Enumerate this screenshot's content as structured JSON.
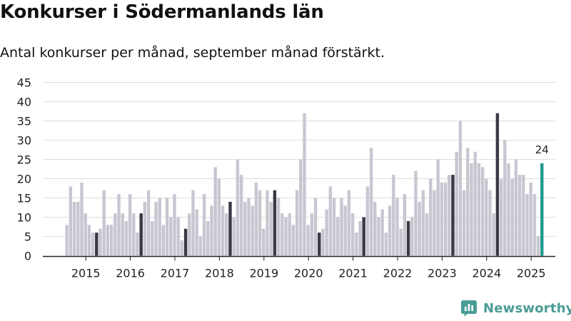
{
  "title": "Konkurser i Södermanlands län",
  "subtitle": "Antal konkurser per månad, september månad förstärkt.",
  "brand": {
    "name": "Newsworthy",
    "color": "#4a9c96",
    "icon": "newsworthy-logo-icon"
  },
  "colors": {
    "regular": "#c8c7d1",
    "september": "#3a3946",
    "latest": "#1f9a8f",
    "grid": "#dedede",
    "axis": "#222222"
  },
  "chart_data": {
    "type": "bar",
    "title": "Konkurser i Södermanlands län",
    "subtitle": "Antal konkurser per månad, september månad förstärkt.",
    "xlabel": "",
    "ylabel": "",
    "ylim": [
      0,
      45
    ],
    "yticks": [
      0,
      5,
      10,
      15,
      20,
      25,
      30,
      35,
      40,
      45
    ],
    "grid": true,
    "start_year": 2015,
    "start_month": 1,
    "year_labels": [
      "2015",
      "2016",
      "2017",
      "2018",
      "2019",
      "2020",
      "2021",
      "2022",
      "2023",
      "2024",
      "2025"
    ],
    "highlight": "september",
    "latest_label": "24",
    "values": [
      8,
      18,
      14,
      14,
      19,
      11,
      8,
      6,
      6,
      7,
      17,
      8,
      8,
      11,
      16,
      11,
      9,
      16,
      11,
      6,
      11,
      14,
      17,
      9,
      14,
      15,
      8,
      15,
      10,
      16,
      10,
      4,
      7,
      11,
      17,
      12,
      5,
      16,
      9,
      13,
      23,
      20,
      13,
      11,
      14,
      10,
      25,
      21,
      14,
      15,
      13,
      19,
      17,
      7,
      17,
      14,
      17,
      15,
      11,
      10,
      11,
      8,
      17,
      25,
      37,
      8,
      11,
      15,
      6,
      7,
      12,
      18,
      15,
      10,
      15,
      13,
      17,
      11,
      6,
      9,
      10,
      18,
      28,
      14,
      10,
      12,
      6,
      13,
      21,
      15,
      7,
      16,
      9,
      10,
      22,
      14,
      17,
      11,
      20,
      17,
      25,
      19,
      19,
      21,
      21,
      27,
      35,
      17,
      28,
      24,
      27,
      24,
      23,
      20,
      17,
      11,
      37,
      20,
      30,
      24,
      20,
      25,
      21,
      21,
      16,
      19,
      16,
      5,
      24
    ]
  }
}
